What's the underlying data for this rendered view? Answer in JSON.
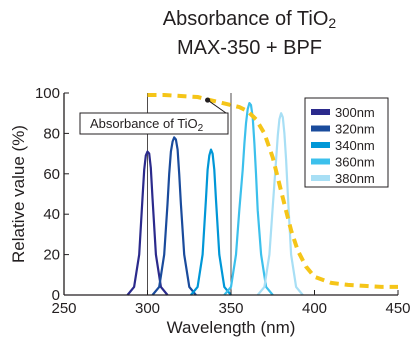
{
  "chart_data": {
    "type": "line",
    "title_line1_main": "Absorbance of TiO",
    "title_line1_sub": "2",
    "title_line2": "MAX-350 + BPF",
    "xlabel": "Wavelength (nm)",
    "ylabel": "Relative value (%)",
    "xlim": [
      250,
      450
    ],
    "ylim": [
      0,
      100
    ],
    "xticks": [
      250,
      300,
      350,
      400,
      450
    ],
    "yticks": [
      0,
      20,
      40,
      60,
      80,
      100
    ],
    "grid": "vertical lines at 300 and 350 nm",
    "legend_position": "top-right",
    "annotation": {
      "main": "Absorbance of TiO",
      "sub": "2"
    },
    "series": [
      {
        "name": "300nm",
        "color": "#2b2a8c",
        "x": [
          288,
          292,
          295,
          297,
          298,
          299,
          300,
          301,
          302,
          303,
          305,
          308,
          312
        ],
        "y": [
          0,
          4,
          20,
          48,
          62,
          69,
          71,
          70,
          63,
          48,
          20,
          4,
          0
        ]
      },
      {
        "name": "320nm",
        "color": "#1a4b9c",
        "x": [
          303,
          307,
          310,
          312,
          313,
          314,
          315,
          316,
          317,
          318,
          319,
          320,
          322,
          325,
          329
        ],
        "y": [
          0,
          4,
          20,
          45,
          60,
          71,
          76,
          78,
          77,
          72,
          60,
          45,
          20,
          4,
          0
        ]
      },
      {
        "name": "340nm",
        "color": "#0097d7",
        "x": [
          326,
          330,
          333,
          335,
          336,
          337,
          338,
          339,
          340,
          341,
          343,
          346,
          350
        ],
        "y": [
          0,
          4,
          20,
          47,
          62,
          69,
          72,
          70,
          62,
          47,
          20,
          4,
          0
        ]
      },
      {
        "name": "360nm",
        "color": "#3cc0ec",
        "x": [
          346,
          350,
          353,
          355,
          357,
          358,
          359,
          360,
          361,
          362,
          363,
          364,
          365,
          366,
          368,
          371,
          375
        ],
        "y": [
          0,
          4,
          20,
          42,
          62,
          75,
          85,
          92,
          95,
          94,
          88,
          75,
          60,
          42,
          20,
          4,
          0
        ]
      },
      {
        "name": "380nm",
        "color": "#a8dff5",
        "x": [
          366,
          370,
          373,
          375,
          377,
          378,
          379,
          380,
          381,
          382,
          383,
          384,
          386,
          389,
          393
        ],
        "y": [
          0,
          4,
          20,
          44,
          67,
          79,
          87,
          90,
          88,
          80,
          67,
          50,
          20,
          4,
          0
        ]
      },
      {
        "name": "Absorbance of TiO2",
        "color": "#f5c518",
        "style": "dashed",
        "x": [
          300,
          310,
          320,
          330,
          335,
          340,
          345,
          350,
          355,
          360,
          365,
          370,
          375,
          378,
          382,
          386,
          390,
          395,
          400,
          410,
          420,
          430,
          440,
          450
        ],
        "y": [
          99,
          99,
          98.5,
          98,
          97,
          96,
          95,
          94,
          93,
          91,
          87,
          80,
          68,
          58,
          45,
          32,
          22,
          14,
          9,
          6,
          5,
          4.5,
          4,
          4
        ]
      }
    ]
  }
}
